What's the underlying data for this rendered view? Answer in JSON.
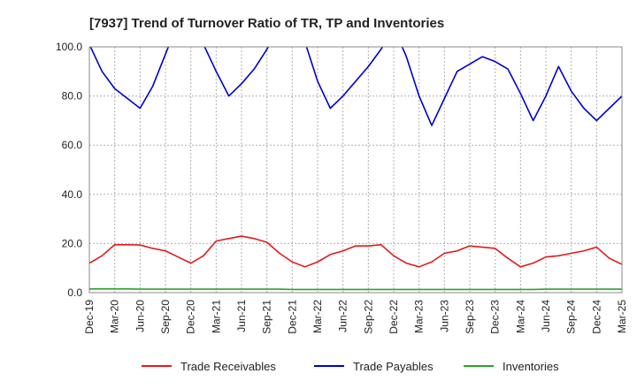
{
  "chart_data": {
    "type": "line",
    "title": "[7937]  Trend of Turnover Ratio of TR, TP and Inventories",
    "xlabel": "",
    "ylabel": "",
    "ylim": [
      0,
      100
    ],
    "yticks": [
      "0.0",
      "20.0",
      "40.0",
      "60.0",
      "80.0",
      "100.0"
    ],
    "xticks": [
      "Dec-19",
      "Mar-20",
      "Jun-20",
      "Sep-20",
      "Dec-20",
      "Mar-21",
      "Jun-21",
      "Sep-21",
      "Dec-21",
      "Mar-22",
      "Jun-22",
      "Sep-22",
      "Dec-22",
      "Mar-23",
      "Jun-23",
      "Sep-23",
      "Dec-23",
      "Mar-24",
      "Jun-24",
      "Sep-24",
      "Dec-24",
      "Mar-25"
    ],
    "grid": true,
    "legend_position": "bottom",
    "series": [
      {
        "name": "Trade Receivables",
        "color": "#e31a1c",
        "values": [
          12.0,
          15.0,
          19.5,
          19.5,
          19.4,
          18.0,
          17.0,
          14.5,
          12.0,
          15.0,
          21.0,
          22.0,
          23.0,
          22.0,
          20.5,
          16.0,
          12.5,
          10.5,
          12.5,
          15.5,
          17.0,
          19.0,
          19.0,
          19.5,
          15.0,
          12.0,
          10.5,
          12.5,
          16.0,
          17.0,
          19.0,
          18.5,
          18.0,
          14.0,
          10.5,
          12.0,
          14.5,
          15.0,
          16.0,
          17.0,
          18.5,
          14.0,
          11.5
        ]
      },
      {
        "name": "Trade Payables",
        "color": "#0000cc",
        "values": [
          101.0,
          90.0,
          83.0,
          79.0,
          75.0,
          84.0,
          97.0,
          110.0,
          115.0,
          101.0,
          90.0,
          80.0,
          85.0,
          91.0,
          99.0,
          108.0,
          112.0,
          102.0,
          86.0,
          75.0,
          80.0,
          86.0,
          92.0,
          99.0,
          108.0,
          96.0,
          80.0,
          68.0,
          79.0,
          90.0,
          93.0,
          96.0,
          94.0,
          91.0,
          81.0,
          70.0,
          80.0,
          92.0,
          82.0,
          75.0,
          70.0,
          75.0,
          80.0
        ]
      },
      {
        "name": "Inventories",
        "color": "#2ca02c",
        "values": [
          1.5,
          1.5,
          1.5,
          1.5,
          1.4,
          1.4,
          1.4,
          1.4,
          1.4,
          1.4,
          1.4,
          1.4,
          1.4,
          1.4,
          1.4,
          1.4,
          1.3,
          1.3,
          1.3,
          1.3,
          1.3,
          1.3,
          1.3,
          1.3,
          1.3,
          1.3,
          1.3,
          1.3,
          1.3,
          1.3,
          1.3,
          1.3,
          1.3,
          1.3,
          1.3,
          1.3,
          1.4,
          1.4,
          1.4,
          1.4,
          1.4,
          1.4,
          1.4
        ]
      }
    ]
  }
}
